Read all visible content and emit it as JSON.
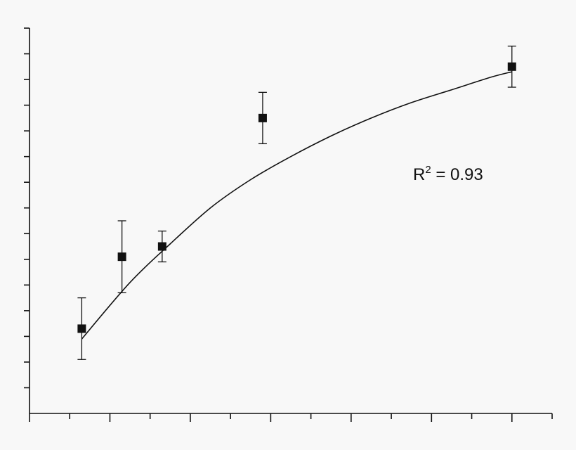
{
  "chart_data": {
    "type": "scatter",
    "title": "",
    "xlabel": "",
    "ylabel": "",
    "xlim": [
      0,
      13
    ],
    "ylim": [
      0,
      15
    ],
    "grid": false,
    "x_major_step": 2,
    "x_minor_step": 1,
    "y_major_step": 2,
    "y_minor_step": 1,
    "points": [
      {
        "x": 1.3,
        "y": 3.3,
        "err": 1.2
      },
      {
        "x": 2.3,
        "y": 6.1,
        "err": 1.4
      },
      {
        "x": 3.3,
        "y": 6.5,
        "err": 0.6
      },
      {
        "x": 5.8,
        "y": 11.5,
        "err": 1.0
      },
      {
        "x": 12.0,
        "y": 13.5,
        "err": 0.8
      }
    ],
    "fit_curve": {
      "type": "saturating",
      "x": [
        1.3,
        2.5,
        3.5,
        4.5,
        5.5,
        6.5,
        7.5,
        8.5,
        9.5,
        10.5,
        11.5,
        12.0
      ],
      "y": [
        2.9,
        5.1,
        6.6,
        8.0,
        9.1,
        10.0,
        10.8,
        11.5,
        12.1,
        12.6,
        13.1,
        13.3
      ]
    },
    "annotation": {
      "base": "R",
      "sup": "2",
      "text": " = 0.93"
    }
  }
}
